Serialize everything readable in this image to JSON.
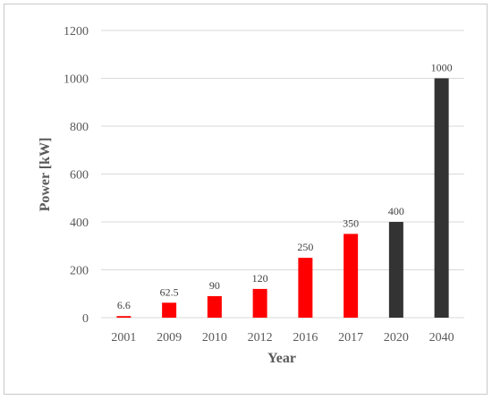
{
  "chart_data": {
    "type": "bar",
    "title": "",
    "xlabel": "Year",
    "ylabel": "Power [kW]",
    "categories": [
      "2001",
      "2009",
      "2010",
      "2012",
      "2016",
      "2017",
      "2020",
      "2040"
    ],
    "values": [
      6.6,
      62.5,
      90,
      120,
      250,
      350,
      400,
      1000
    ],
    "data_labels": [
      "6.6",
      "62.5",
      "90",
      "120",
      "250",
      "350",
      "400",
      "1000"
    ],
    "bar_colors": [
      "#ff0000",
      "#ff0000",
      "#ff0000",
      "#ff0000",
      "#ff0000",
      "#ff0000",
      "#333333",
      "#333333"
    ],
    "ylim": [
      0,
      1200
    ],
    "yticks": [
      0,
      200,
      400,
      600,
      800,
      1000,
      1200
    ],
    "grid": true,
    "legend": "none"
  }
}
